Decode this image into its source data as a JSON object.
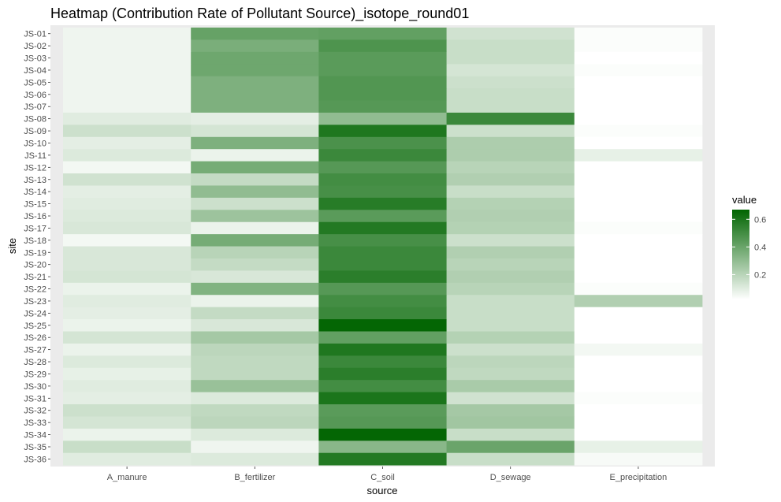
{
  "chart_data": {
    "type": "heatmap",
    "title": "Heatmap (Contribution Rate of Pollutant Source)_isotope_round01",
    "xlabel": "source",
    "ylabel": "site",
    "x_categories": [
      "A_manure",
      "B_fertilizer",
      "C_soil",
      "D_sewage",
      "E_precipitation"
    ],
    "y_categories": [
      "JS-01",
      "JS-02",
      "JS-03",
      "JS-04",
      "JS-05",
      "JS-06",
      "JS-07",
      "JS-08",
      "JS-09",
      "JS-10",
      "JS-11",
      "JS-12",
      "JS-13",
      "JS-14",
      "JS-15",
      "JS-16",
      "JS-17",
      "JS-18",
      "JS-19",
      "JS-20",
      "JS-21",
      "JS-22",
      "JS-23",
      "JS-24",
      "JS-25",
      "JS-26",
      "JS-27",
      "JS-28",
      "JS-29",
      "JS-30",
      "JS-31",
      "JS-32",
      "JS-33",
      "JS-34",
      "JS-35",
      "JS-36"
    ],
    "values": [
      [
        0.06,
        0.41,
        0.42,
        0.14,
        0.03
      ],
      [
        0.06,
        0.36,
        0.47,
        0.16,
        0.03
      ],
      [
        0.06,
        0.39,
        0.44,
        0.16,
        0.01
      ],
      [
        0.06,
        0.39,
        0.44,
        0.13,
        0.03
      ],
      [
        0.06,
        0.35,
        0.46,
        0.15,
        0.02
      ],
      [
        0.06,
        0.35,
        0.46,
        0.16,
        0.02
      ],
      [
        0.06,
        0.35,
        0.45,
        0.16,
        0.02
      ],
      [
        0.1,
        0.09,
        0.3,
        0.52,
        0.01
      ],
      [
        0.15,
        0.13,
        0.59,
        0.15,
        0.03
      ],
      [
        0.09,
        0.35,
        0.48,
        0.23,
        0.01
      ],
      [
        0.11,
        0.07,
        0.52,
        0.23,
        0.08
      ],
      [
        0.05,
        0.37,
        0.45,
        0.2,
        0.02
      ],
      [
        0.14,
        0.17,
        0.5,
        0.22,
        0.02
      ],
      [
        0.09,
        0.3,
        0.49,
        0.16,
        0.02
      ],
      [
        0.1,
        0.15,
        0.57,
        0.21,
        0.02
      ],
      [
        0.11,
        0.27,
        0.44,
        0.22,
        0.02
      ],
      [
        0.12,
        0.07,
        0.58,
        0.21,
        0.03
      ],
      [
        0.05,
        0.37,
        0.49,
        0.15,
        0.02
      ],
      [
        0.12,
        0.2,
        0.52,
        0.22,
        0.02
      ],
      [
        0.12,
        0.17,
        0.52,
        0.2,
        0.02
      ],
      [
        0.13,
        0.12,
        0.56,
        0.22,
        0.02
      ],
      [
        0.07,
        0.34,
        0.45,
        0.2,
        0.03
      ],
      [
        0.1,
        0.07,
        0.5,
        0.16,
        0.22
      ],
      [
        0.09,
        0.17,
        0.52,
        0.16,
        0.01
      ],
      [
        0.07,
        0.12,
        0.66,
        0.16,
        0.01
      ],
      [
        0.13,
        0.25,
        0.42,
        0.21,
        0.02
      ],
      [
        0.07,
        0.19,
        0.59,
        0.15,
        0.05
      ],
      [
        0.11,
        0.18,
        0.52,
        0.19,
        0.01
      ],
      [
        0.08,
        0.18,
        0.56,
        0.18,
        0.01
      ],
      [
        0.1,
        0.28,
        0.5,
        0.24,
        0.02
      ],
      [
        0.09,
        0.11,
        0.6,
        0.14,
        0.03
      ],
      [
        0.15,
        0.18,
        0.44,
        0.25,
        0.02
      ],
      [
        0.13,
        0.19,
        0.45,
        0.26,
        0.02
      ],
      [
        0.07,
        0.11,
        0.66,
        0.16,
        0.01
      ],
      [
        0.16,
        0.06,
        0.32,
        0.4,
        0.08
      ],
      [
        0.1,
        0.11,
        0.58,
        0.16,
        0.04
      ]
    ],
    "color_scale": {
      "low": "#ffffff",
      "high": "#006400",
      "domain": [
        0.02,
        0.67
      ]
    },
    "legend": {
      "title": "value",
      "ticks": [
        0.2,
        0.4,
        0.6
      ],
      "tick_labels": [
        "0.2",
        "0.4",
        "0.6"
      ],
      "position": "right"
    },
    "grid": true,
    "panel_background": "#ebebeb"
  }
}
